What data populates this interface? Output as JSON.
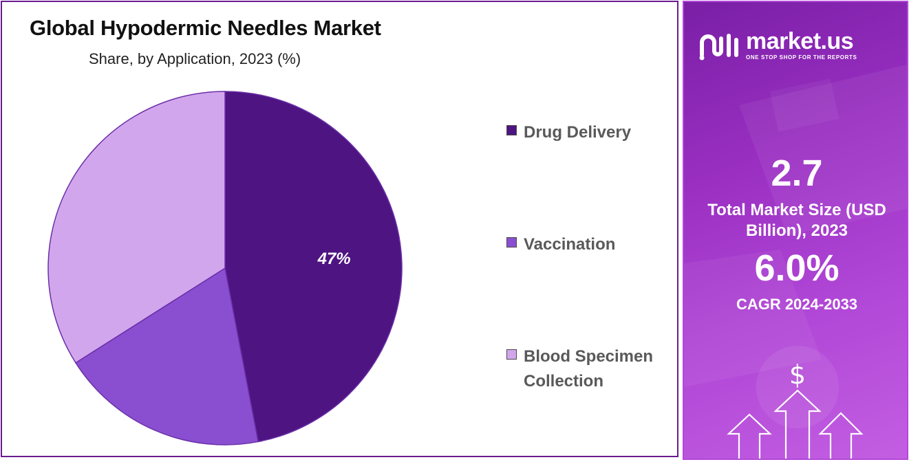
{
  "chart_data": {
    "type": "pie",
    "title": "Global Hypodermic Needles Market",
    "subtitle": "Share, by Application, 2023 (%)",
    "categories": [
      "Drug Delivery",
      "Vaccination",
      "Blood Specimen Collection"
    ],
    "values": [
      47,
      19,
      34
    ],
    "data_labels": [
      "47%",
      "",
      ""
    ],
    "colors": [
      "#4e1482",
      "#8a4fd1",
      "#d2a6ec"
    ],
    "legend_position": "right",
    "legend": [
      {
        "label": "Drug Delivery",
        "color": "#4e1482"
      },
      {
        "label": "Vaccination",
        "color": "#8a4fd1"
      },
      {
        "label": "Blood Specimen Collection",
        "color": "#d2a6ec"
      }
    ]
  },
  "info_panel": {
    "brand_name": "market.us",
    "tagline": "ONE STOP SHOP FOR THE REPORTS",
    "market_size_value": "2.7",
    "market_size_label": "Total Market Size (USD Billion), 2023",
    "cagr_value": "6.0%",
    "cagr_label": "CAGR 2024-2033",
    "dollar_symbol": "$",
    "background_colors": [
      "#7a1fa6",
      "#c35ee2"
    ]
  }
}
